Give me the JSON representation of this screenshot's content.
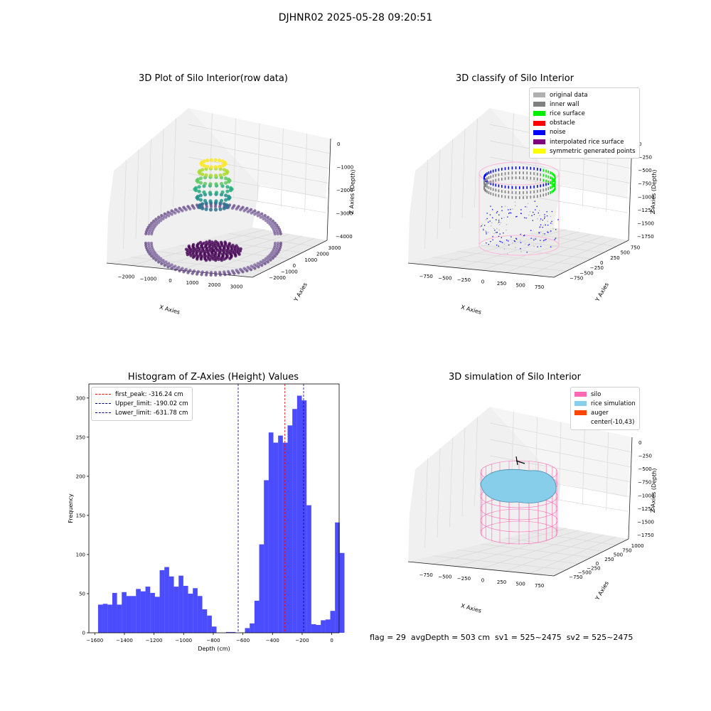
{
  "suptitle": "DJHNR02 2025-05-28 09:20:51",
  "plots": {
    "raw": {
      "title": "3D Plot of Silo Interior(row data)",
      "xlabel": "X Axies",
      "ylabel": "Y Axies",
      "zlabel": "Z Axies (Depth)",
      "xticks": [
        "−2000",
        "−1000",
        "0",
        "1000",
        "2000",
        "3000"
      ],
      "yticks": [
        "−2000",
        "−1000",
        "0",
        "1000",
        "2000",
        "3000"
      ],
      "zticks": [
        "0",
        "−1000",
        "−2000",
        "−3000",
        "−4000"
      ]
    },
    "classify": {
      "title": "3D classify of Silo Interior",
      "xlabel": "X Axies",
      "ylabel": "Y Axies",
      "zlabel": "Z Axies (Depth)",
      "xticks": [
        "−750",
        "−500",
        "−250",
        "0",
        "250",
        "500",
        "750"
      ],
      "yticks": [
        "−750",
        "−500",
        "−250",
        "0",
        "250",
        "500",
        "750"
      ],
      "zticks": [
        "0",
        "−250",
        "−500",
        "−750",
        "−1000",
        "−1250",
        "−1500",
        "−1750"
      ],
      "legend": [
        {
          "label": "original data",
          "color": "#b0b0b0"
        },
        {
          "label": "inner wall",
          "color": "#808080"
        },
        {
          "label": "rice surface",
          "color": "#00ee00"
        },
        {
          "label": "obstacle",
          "color": "#ff0000"
        },
        {
          "label": "noise",
          "color": "#0000ff"
        },
        {
          "label": "interpolated rice surface",
          "color": "#800080"
        },
        {
          "label": "symmetric generated points",
          "color": "#ffff00"
        }
      ]
    },
    "simulation": {
      "title": "3D simulation of Silo Interior",
      "xlabel": "X Axies",
      "ylabel": "Y Axies",
      "zlabel": "Z Axies (Depth)",
      "xticks": [
        "−750",
        "−500",
        "−250",
        "0",
        "250",
        "500",
        "750"
      ],
      "yticks": [
        "−750",
        "−500",
        "−250",
        "0",
        "250",
        "500",
        "750",
        "1000"
      ],
      "zticks": [
        "0",
        "−250",
        "−500",
        "−750",
        "−1000",
        "−1250",
        "−1500",
        "−1750"
      ],
      "legend": [
        {
          "label": "silo",
          "color": "#ff69b4"
        },
        {
          "label": "rice simulation",
          "color": "#87ceeb"
        },
        {
          "label": "auger",
          "color": "#ff4500"
        },
        {
          "label": "center(-10,43)",
          "color": "#ffffff"
        }
      ]
    }
  },
  "chart_data": {
    "type": "bar",
    "title": "Histogram of Z-Axies (Height) Values",
    "xlabel": "Depth (cm)",
    "ylabel": "Frequency",
    "xlim": [
      -1640,
      50
    ],
    "ylim": [
      0,
      318
    ],
    "bar_color": "#0000ff",
    "bin_width": 32,
    "bin_start": -1578,
    "values": [
      36,
      37,
      36,
      51,
      36,
      52,
      47,
      47,
      56,
      53,
      59,
      51,
      46,
      80,
      84,
      72,
      59,
      73,
      60,
      50,
      57,
      47,
      30,
      22,
      8,
      0,
      0,
      1,
      1,
      0,
      0,
      6,
      12,
      41,
      113,
      195,
      256,
      243,
      252,
      243,
      265,
      286,
      303,
      297,
      163,
      11,
      10,
      16,
      17,
      28,
      141,
      102
    ],
    "xticks": [
      -1600,
      -1400,
      -1200,
      -1000,
      -800,
      -600,
      -400,
      -200,
      0
    ],
    "xtick_labels": [
      "−1600",
      "−1400",
      "−1200",
      "−1000",
      "−800",
      "−600",
      "−400",
      "−200",
      "0"
    ],
    "yticks": [
      0,
      50,
      100,
      150,
      200,
      250,
      300
    ],
    "lines": [
      {
        "label": "first_peak: -316.24 cm",
        "x": -316.24,
        "color": "#ff0000"
      },
      {
        "label": "Upper_limit: -190.02 cm",
        "x": -190.02,
        "color": "#00008b"
      },
      {
        "label": "Lower_limit: -631.78 cm",
        "x": -631.78,
        "color": "#00008b"
      }
    ]
  },
  "status": "flag = 29  avgDepth = 503 cm  sv1 = 525~2475  sv2 = 525~2475"
}
